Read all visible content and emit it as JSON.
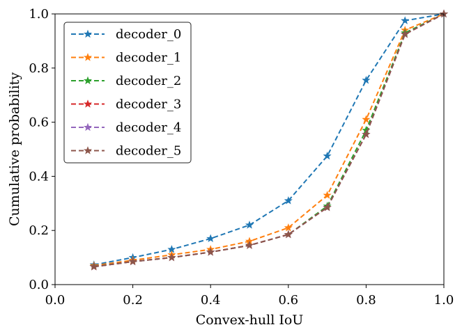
{
  "chart_data": {
    "type": "line",
    "xlabel": "Convex-hull IoU",
    "ylabel": "Cumulative probability",
    "xlim": [
      0.0,
      1.0
    ],
    "ylim": [
      0.0,
      1.0
    ],
    "xticks": [
      "0.0",
      "0.2",
      "0.4",
      "0.6",
      "0.8",
      "1.0"
    ],
    "yticks": [
      "0.0",
      "0.2",
      "0.4",
      "0.6",
      "0.8",
      "1.0"
    ],
    "grid": false,
    "legend_position": "top-left",
    "x": [
      0.1,
      0.2,
      0.3,
      0.4,
      0.5,
      0.6,
      0.7,
      0.8,
      0.9,
      1.0
    ],
    "series": [
      {
        "name": "decoder_0",
        "color": "#1f77b4",
        "values": [
          0.073,
          0.1,
          0.13,
          0.17,
          0.22,
          0.31,
          0.475,
          0.755,
          0.975,
          1.0
        ]
      },
      {
        "name": "decoder_1",
        "color": "#ff7f0e",
        "values": [
          0.07,
          0.09,
          0.11,
          0.13,
          0.16,
          0.21,
          0.33,
          0.61,
          0.94,
          1.0
        ]
      },
      {
        "name": "decoder_2",
        "color": "#2ca02c",
        "values": [
          0.067,
          0.085,
          0.1,
          0.12,
          0.145,
          0.185,
          0.29,
          0.57,
          0.93,
          1.0
        ]
      },
      {
        "name": "decoder_3",
        "color": "#d62728",
        "values": [
          0.066,
          0.085,
          0.1,
          0.12,
          0.145,
          0.185,
          0.285,
          0.555,
          0.925,
          1.0
        ]
      },
      {
        "name": "decoder_4",
        "color": "#9467bd",
        "values": [
          0.066,
          0.085,
          0.1,
          0.12,
          0.145,
          0.185,
          0.285,
          0.555,
          0.925,
          1.0
        ]
      },
      {
        "name": "decoder_5",
        "color": "#8c564b",
        "values": [
          0.066,
          0.085,
          0.1,
          0.12,
          0.145,
          0.185,
          0.285,
          0.555,
          0.925,
          1.0
        ]
      }
    ]
  }
}
